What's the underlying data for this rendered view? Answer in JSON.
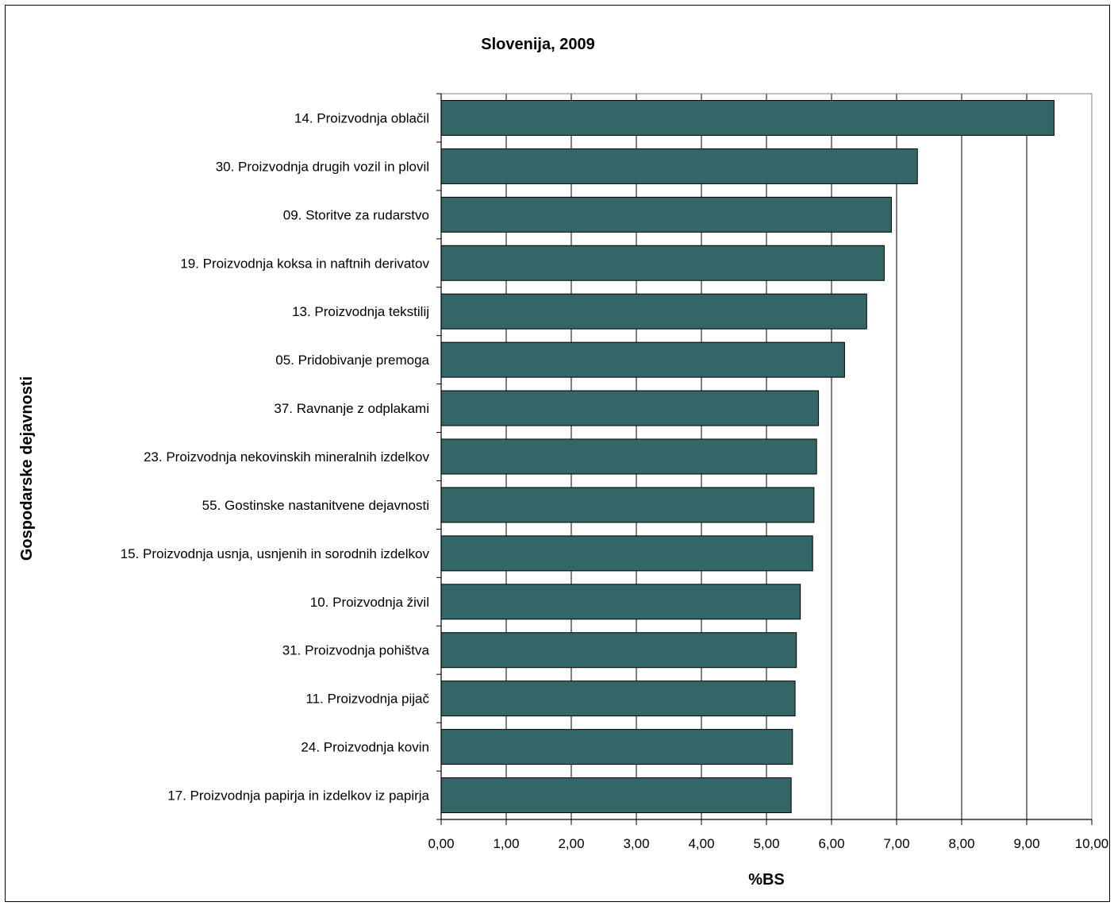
{
  "chart_data": {
    "type": "bar",
    "orientation": "horizontal",
    "title": "Slovenija, 2009",
    "xlabel": "%BS",
    "ylabel": "Gospodarske dejavnosti",
    "xlim": [
      0,
      10
    ],
    "x_ticks": [
      "0,00",
      "1,00",
      "2,00",
      "3,00",
      "4,00",
      "5,00",
      "6,00",
      "7,00",
      "8,00",
      "9,00",
      "10,00"
    ],
    "grid": "vertical",
    "legend": "none",
    "bar_color": "#336666",
    "categories": [
      "14. Proizvodnja oblačil",
      "30. Proizvodnja drugih vozil in plovil",
      "09. Storitve za rudarstvo",
      "19. Proizvodnja koksa in naftnih derivatov",
      "13. Proizvodnja tekstilij",
      "05. Pridobivanje premoga",
      "37. Ravnanje z odplakami",
      "23. Proizvodnja nekovinskih mineralnih izdelkov",
      "55. Gostinske nastanitvene dejavnosti",
      "15. Proizvodnja usnja, usnjenih in sorodnih izdelkov",
      "10. Proizvodnja živil",
      "31. Proizvodnja pohištva",
      "11. Proizvodnja pijač",
      "24. Proizvodnja kovin",
      "17. Proizvodnja papirja in izdelkov iz papirja"
    ],
    "values": [
      9.42,
      7.32,
      6.92,
      6.81,
      6.54,
      6.2,
      5.8,
      5.77,
      5.73,
      5.71,
      5.52,
      5.46,
      5.44,
      5.4,
      5.38
    ]
  }
}
